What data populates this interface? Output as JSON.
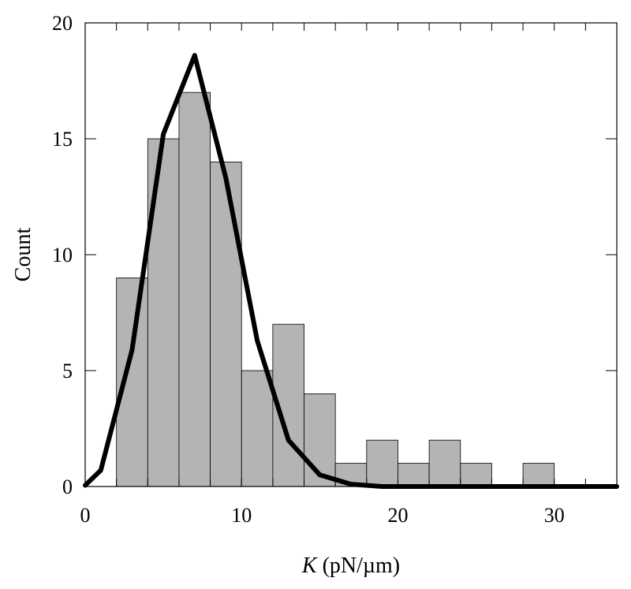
{
  "chart_data": {
    "type": "bar",
    "xlabel_italic": "K",
    "xlabel_rest": " (pN/µm)",
    "ylabel": "Count",
    "xlim": [
      0,
      34
    ],
    "ylim": [
      0,
      20
    ],
    "x_ticks": [
      0,
      10,
      20,
      30
    ],
    "y_ticks": [
      0,
      5,
      10,
      15,
      20
    ],
    "x_minor_step": 2,
    "bin_width": 2,
    "bins": [
      {
        "x0": 2,
        "count": 9
      },
      {
        "x0": 4,
        "count": 15
      },
      {
        "x0": 6,
        "count": 17
      },
      {
        "x0": 8,
        "count": 14
      },
      {
        "x0": 10,
        "count": 5
      },
      {
        "x0": 12,
        "count": 7
      },
      {
        "x0": 14,
        "count": 4
      },
      {
        "x0": 16,
        "count": 1
      },
      {
        "x0": 18,
        "count": 2
      },
      {
        "x0": 20,
        "count": 1
      },
      {
        "x0": 22,
        "count": 2
      },
      {
        "x0": 24,
        "count": 1
      },
      {
        "x0": 26,
        "count": 0
      },
      {
        "x0": 28,
        "count": 1
      },
      {
        "x0": 30,
        "count": 0
      },
      {
        "x0": 32,
        "count": 0
      }
    ],
    "fit_curve": {
      "x": [
        0,
        1,
        3,
        5,
        7,
        9,
        11,
        13,
        15,
        17,
        19,
        21,
        23,
        25,
        27,
        29,
        31,
        33,
        34
      ],
      "y": [
        0.05,
        0.7,
        5.9,
        15.2,
        18.6,
        13.3,
        6.3,
        2.0,
        0.5,
        0.1,
        0,
        0,
        0,
        0,
        0,
        0,
        0,
        0,
        0
      ]
    }
  }
}
